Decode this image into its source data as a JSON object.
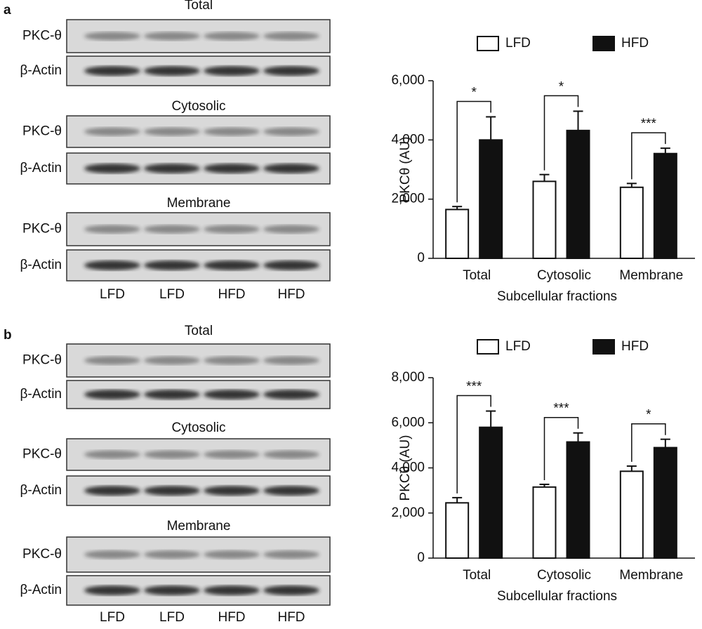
{
  "panels": [
    {
      "label": "a",
      "lanes": [
        "LFD",
        "LFD",
        "HFD",
        "HFD"
      ],
      "blots": [
        {
          "title": "Total",
          "rows": [
            "PKC-θ",
            "β-Actin"
          ]
        },
        {
          "title": "Cytosolic",
          "rows": [
            "PKC-θ",
            "β-Actin"
          ]
        },
        {
          "title": "Membrane",
          "rows": [
            "PKC-θ",
            "β-Actin"
          ]
        }
      ]
    },
    {
      "label": "b",
      "lanes": [
        "LFD",
        "LFD",
        "HFD",
        "HFD"
      ],
      "blots": [
        {
          "title": "Total",
          "rows": [
            "PKC-θ",
            "β-Actin"
          ]
        },
        {
          "title": "Cytosolic",
          "rows": [
            "PKC-θ",
            "β-Actin"
          ]
        },
        {
          "title": "Membrane",
          "rows": [
            "PKC-θ",
            "β-Actin"
          ]
        }
      ]
    }
  ],
  "chart_data": [
    {
      "type": "bar",
      "y_label": "PKCθ (AU)",
      "x_label": "Subcellular fractions",
      "categories": [
        "Total",
        "Cytosolic",
        "Membrane"
      ],
      "series": [
        {
          "name": "LFD",
          "color": "#ffffff",
          "values": [
            1650,
            2600,
            2400
          ],
          "errors": [
            100,
            230,
            130
          ]
        },
        {
          "name": "HFD",
          "color": "#111111",
          "values": [
            4000,
            4320,
            3540
          ],
          "errors": [
            780,
            650,
            180
          ]
        }
      ],
      "significance": [
        "*",
        "*",
        "***"
      ],
      "ylim": [
        0,
        6000
      ],
      "yticks": [
        0,
        {
          "value": 2000,
          "label": "2,000"
        },
        {
          "value": 4000,
          "label": "4,000"
        },
        {
          "value": 6000,
          "label": "6,000"
        }
      ]
    },
    {
      "type": "bar",
      "y_label": "PKCθ (AU)",
      "x_label": "Subcellular fractions",
      "categories": [
        "Total",
        "Cytosolic",
        "Membrane"
      ],
      "series": [
        {
          "name": "LFD",
          "color": "#ffffff",
          "values": [
            2450,
            3150,
            3850
          ],
          "errors": [
            230,
            120,
            230
          ]
        },
        {
          "name": "HFD",
          "color": "#111111",
          "values": [
            5800,
            5150,
            4900
          ],
          "errors": [
            720,
            400,
            370
          ]
        }
      ],
      "significance": [
        "***",
        "***",
        "*"
      ],
      "ylim": [
        0,
        8000
      ],
      "yticks": [
        0,
        {
          "value": 2000,
          "label": "2,000"
        },
        {
          "value": 4000,
          "label": "4,000"
        },
        {
          "value": 6000,
          "label": "6,000"
        },
        {
          "value": 8000,
          "label": "8,000"
        }
      ]
    }
  ]
}
